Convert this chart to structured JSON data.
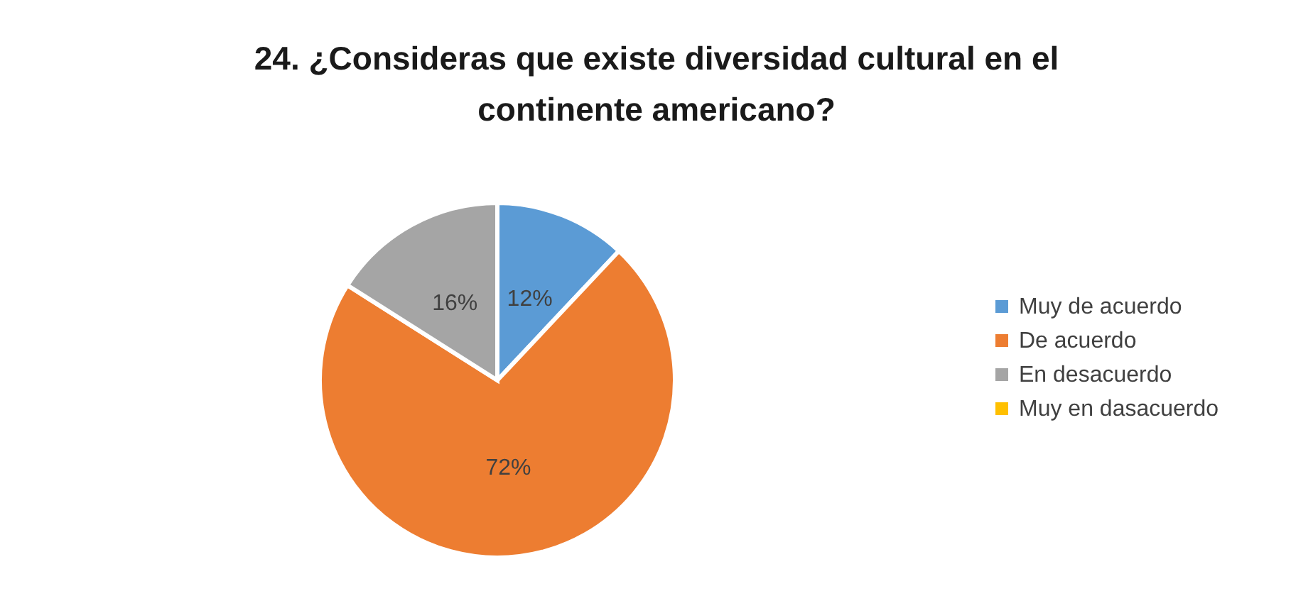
{
  "chart_data": {
    "type": "pie",
    "title": "24. ¿Consideras que existe diversidad cultural en el continente americano?",
    "categories": [
      "Muy de acuerdo",
      "De acuerdo",
      "En desacuerdo",
      "Muy en dasacuerdo"
    ],
    "values": [
      12,
      72,
      16,
      0
    ],
    "colors": [
      "#5b9bd5",
      "#ed7d31",
      "#a5a5a5",
      "#ffc000"
    ],
    "value_labels": [
      "12%",
      "72%",
      "16%",
      null
    ],
    "legend": "right"
  }
}
